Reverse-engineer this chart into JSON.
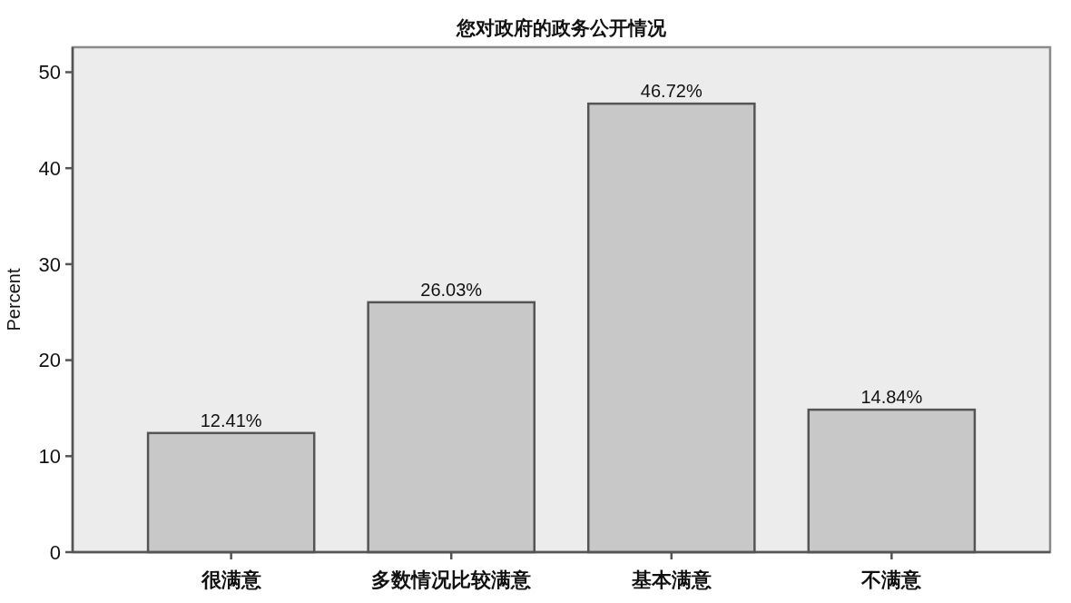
{
  "chart_data": {
    "type": "bar",
    "title": "您对政府的政务公开情况",
    "ylabel": "Percent",
    "categories": [
      "很满意",
      "多数情况比较满意",
      "基本满意",
      "不满意"
    ],
    "values": [
      12.41,
      26.03,
      46.72,
      14.84
    ],
    "value_labels": [
      "12.41%",
      "26.03%",
      "46.72%",
      "14.84%"
    ],
    "color": "#c8c8c8",
    "ylim": [
      0,
      52.6
    ],
    "yticks": [
      0,
      10,
      20,
      30,
      40,
      50
    ],
    "grid": false
  }
}
